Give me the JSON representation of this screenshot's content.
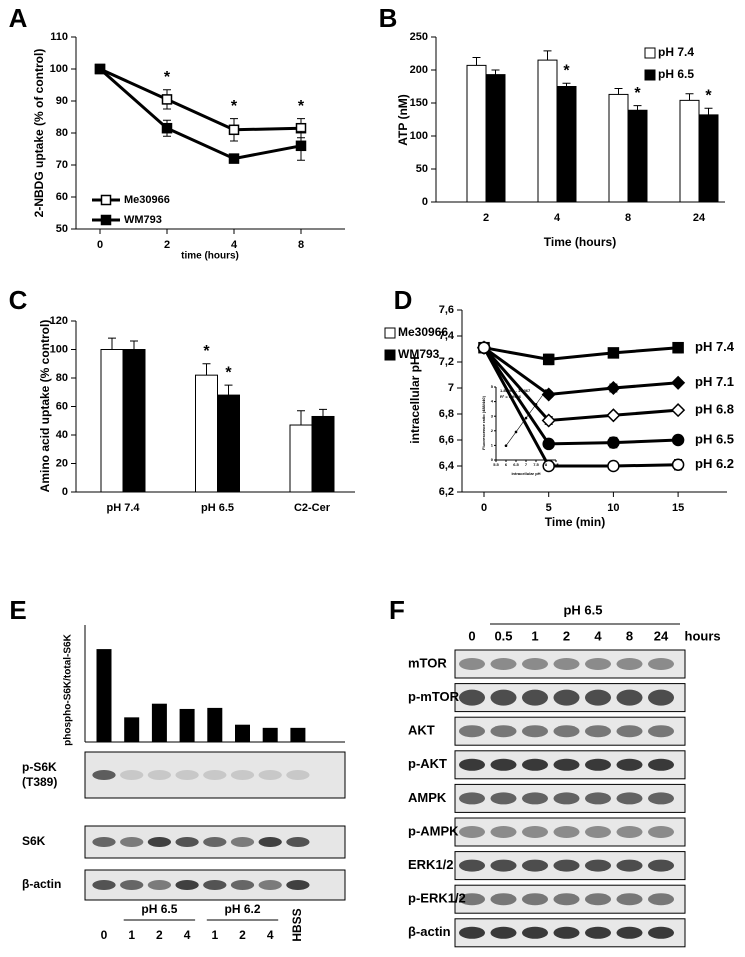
{
  "chart_data": [
    {
      "type": "line",
      "label": "A",
      "ylabel": "2-NBDG uptake (% of control)",
      "xlabel": "time (hours)",
      "categories": [
        "0",
        "2",
        "4",
        "8"
      ],
      "series": [
        {
          "name": "Me30966",
          "color": "#000000",
          "marker": "square",
          "marker_fill": "#ffffff",
          "values": [
            100,
            90.5,
            81,
            81.5
          ],
          "errors": [
            0,
            3,
            3.5,
            3
          ]
        },
        {
          "name": "WM793",
          "color": "#000000",
          "marker": "square",
          "marker_fill": "#000000",
          "values": [
            100,
            81.5,
            72,
            76
          ],
          "errors": [
            0,
            2.5,
            1,
            4.5
          ]
        }
      ],
      "ylim": [
        50,
        110
      ],
      "yticks": [
        50,
        60,
        70,
        80,
        90,
        100,
        110
      ],
      "legend": "lower left",
      "annotations": [
        {
          "text": "*",
          "category": "2"
        },
        {
          "text": "*",
          "category": "4"
        },
        {
          "text": "*",
          "category": "8"
        }
      ]
    },
    {
      "type": "bar",
      "label": "B",
      "ylabel": "ATP (nM)",
      "xlabel": "Time (hours)",
      "categories": [
        "2",
        "4",
        "8",
        "24"
      ],
      "series": [
        {
          "name": "pH 7.4",
          "color": "#ffffff",
          "values": [
            207,
            215,
            163,
            154
          ],
          "errors": [
            12,
            14,
            9,
            10
          ]
        },
        {
          "name": "pH 6.5",
          "color": "#000000",
          "values": [
            193,
            175,
            139,
            132
          ],
          "errors": [
            7,
            5,
            7,
            10
          ]
        }
      ],
      "ylim": [
        0,
        250
      ],
      "yticks": [
        0,
        50,
        100,
        150,
        200,
        250
      ],
      "legend": "upper right",
      "annotations": [
        {
          "text": "*",
          "category": "4",
          "series": "pH 6.5"
        },
        {
          "text": "*",
          "category": "8",
          "series": "pH 6.5"
        },
        {
          "text": "*",
          "category": "24",
          "series": "pH 6.5"
        }
      ]
    },
    {
      "type": "bar",
      "label": "C",
      "ylabel": "Amino acid uptake (% control)",
      "categories": [
        "pH 7.4",
        "pH 6.5",
        "C2-Cer"
      ],
      "series": [
        {
          "name": "Me30966",
          "color": "#ffffff",
          "values": [
            100,
            82,
            47
          ],
          "errors": [
            8,
            8,
            10
          ]
        },
        {
          "name": "WM793",
          "color": "#000000",
          "values": [
            100,
            68,
            53
          ],
          "errors": [
            6,
            7,
            5
          ]
        }
      ],
      "ylim": [
        0,
        120
      ],
      "yticks": [
        0,
        20,
        40,
        60,
        80,
        100,
        120
      ],
      "legend": "right",
      "annotations": [
        {
          "text": "*",
          "category": "pH 6.5",
          "series": "Me30966"
        },
        {
          "text": "*",
          "category": "pH 6.5",
          "series": "WM793"
        }
      ]
    },
    {
      "type": "line",
      "label": "D",
      "ylabel": "intracellular pH",
      "xlabel": "Time (min)",
      "categories": [
        "0",
        "5",
        "10",
        "15"
      ],
      "series": [
        {
          "name": "pH 7.4",
          "color": "#000000",
          "marker": "square",
          "marker_fill": "#000000",
          "values": [
            7.31,
            7.22,
            7.27,
            7.31
          ],
          "errors": [
            0.02,
            0.04,
            0.03,
            0.04
          ]
        },
        {
          "name": "pH 7.1",
          "color": "#000000",
          "marker": "diamond",
          "marker_fill": "#000000",
          "values": [
            7.31,
            6.95,
            7.0,
            7.04
          ],
          "errors": [
            0.02,
            0.02,
            0.03,
            0.01
          ]
        },
        {
          "name": "pH 6.8",
          "color": "#000000",
          "marker": "diamond",
          "marker_fill": "#ffffff",
          "values": [
            7.31,
            6.75,
            6.79,
            6.83
          ],
          "errors": [
            0.02,
            0.03,
            0.02,
            0.02
          ]
        },
        {
          "name": "pH 6.5",
          "color": "#000000",
          "marker": "circle",
          "marker_fill": "#000000",
          "values": [
            7.31,
            6.57,
            6.58,
            6.6
          ],
          "errors": [
            0.02,
            0.02,
            0.04,
            0.02
          ]
        },
        {
          "name": "pH 6.2",
          "color": "#000000",
          "marker": "circle",
          "marker_fill": "#ffffff",
          "values": [
            7.31,
            6.4,
            6.4,
            6.41
          ],
          "errors": [
            0.02,
            0.01,
            0.01,
            0.04
          ]
        }
      ],
      "ylim": [
        6.2,
        7.6
      ],
      "yticks": [
        {
          "value": 6.2,
          "label": "6,2"
        },
        {
          "value": 6.4,
          "label": "6,4"
        },
        {
          "value": 6.6,
          "label": "6,6"
        },
        {
          "value": 6.8,
          "label": "6,8"
        },
        7,
        {
          "value": 7.2,
          "label": "7,2"
        },
        {
          "value": 7.4,
          "label": "7,4"
        },
        {
          "value": 7.6,
          "label": "7,6"
        }
      ],
      "legend": "line end"
    },
    {
      "type": "scatter",
      "ylabel": "Fluorescence ratio (488/440)",
      "xlabel": "intracellular pH",
      "x": [
        6,
        6.5,
        7,
        7.5,
        8
      ],
      "values": [
        0.98,
        1.92,
        2.87,
        3.81,
        4.76
      ],
      "color": "#000000",
      "xlim": [
        5.5,
        8.5
      ],
      "xticks": [
        5.5,
        6,
        6.5,
        7,
        7.5,
        8,
        8.5
      ],
      "ylim": [
        0,
        5
      ],
      "yticks": [
        0,
        1,
        2,
        3,
        4,
        5
      ],
      "annotations": [
        "1.8906x - 10.367",
        "R² = 0.9996"
      ]
    },
    {
      "type": "bar",
      "label": "E",
      "ylabel": "phospho-S6K/total-S6K",
      "categories": [
        "0",
        "1",
        "2",
        "4",
        "1",
        "2",
        "4",
        "HBSS"
      ],
      "groups": [
        null,
        "pH 6.5",
        "pH 6.5",
        "pH 6.5",
        "pH 6.2",
        "pH 6.2",
        "pH 6.2",
        null
      ],
      "values": [
        0.88,
        0.23,
        0.36,
        0.31,
        0.32,
        0.16,
        0.13,
        0.13
      ],
      "color": "#000000",
      "ylim": [
        0,
        1
      ],
      "blots": [
        {
          "label": "p-S6K",
          "sublabel": "(T389)"
        },
        {
          "label": "S6K"
        },
        {
          "label": "β-actin"
        }
      ]
    }
  ],
  "blot_F": {
    "label": "F",
    "header": "pH 6.5",
    "lanes": [
      "0",
      "0.5",
      "1",
      "2",
      "4",
      "8",
      "24"
    ],
    "unit": "hours",
    "rows": [
      "mTOR",
      "p-mTOR",
      "AKT",
      "p-AKT",
      "AMPK",
      "p-AMPK",
      "ERK1/2",
      "p-ERK1/2",
      "β-actin"
    ]
  }
}
